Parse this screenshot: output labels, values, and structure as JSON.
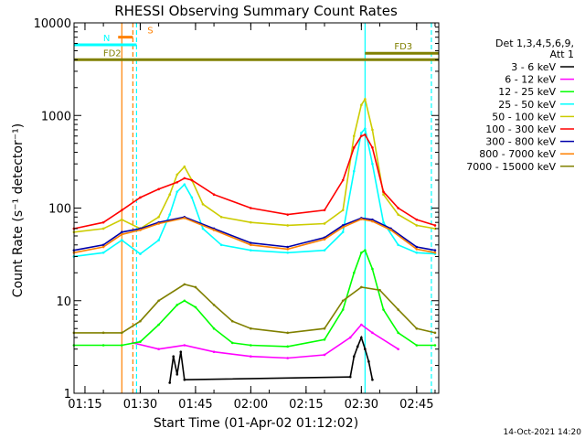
{
  "chart_data": {
    "type": "line",
    "title": "RHESSI Observing Summary Count Rates",
    "xlabel": "Start Time (01-Apr-02 01:12:02)",
    "ylabel": "Count Rate (s⁻¹ detector⁻¹)",
    "y_scale": "log",
    "ylim": [
      1,
      10000
    ],
    "xlim": [
      "01:12:02",
      "02:51:00"
    ],
    "x_ticks": [
      "01:15",
      "01:30",
      "01:45",
      "02:00",
      "02:15",
      "02:30",
      "02:45"
    ],
    "y_ticks": [
      "1",
      "10",
      "100",
      "1000",
      "10000"
    ],
    "legend_title": [
      "Det 1,3,4,5,6,9,",
      "Att 1"
    ],
    "legend_position": "right",
    "timestamp": "14-Oct-2021 14:20",
    "series": [
      {
        "name": "3 - 6 keV",
        "color": "#000000",
        "x": [
          "01:38",
          "01:39",
          "01:40",
          "01:41",
          "01:42",
          "02:27",
          "02:28",
          "02:29",
          "02:30",
          "02:31",
          "02:32",
          "02:33"
        ],
        "values": [
          1.3,
          2.5,
          1.6,
          2.8,
          1.4,
          1.5,
          2.5,
          3.2,
          4.0,
          3.0,
          2.2,
          1.4
        ]
      },
      {
        "name": "6 - 12 keV",
        "color": "#ff00ff",
        "x": [
          "01:28",
          "01:35",
          "01:42",
          "01:50",
          "02:00",
          "02:10",
          "02:20",
          "02:27",
          "02:30",
          "02:33",
          "02:40"
        ],
        "values": [
          3.5,
          3.0,
          3.3,
          2.8,
          2.5,
          2.4,
          2.6,
          4.0,
          5.5,
          4.5,
          3.0
        ]
      },
      {
        "name": "12 - 25 keV",
        "color": "#00ff00",
        "x": [
          "01:12",
          "01:20",
          "01:25",
          "01:30",
          "01:35",
          "01:40",
          "01:42",
          "01:45",
          "01:50",
          "01:55",
          "02:00",
          "02:10",
          "02:20",
          "02:25",
          "02:28",
          "02:30",
          "02:31",
          "02:33",
          "02:36",
          "02:40",
          "02:45",
          "02:50"
        ],
        "values": [
          3.3,
          3.3,
          3.3,
          3.6,
          5.5,
          9.0,
          10.0,
          8.5,
          5.0,
          3.5,
          3.3,
          3.2,
          3.8,
          8.0,
          20,
          33,
          35,
          22,
          8,
          4.5,
          3.3,
          3.3
        ]
      },
      {
        "name": "25 - 50 keV",
        "color": "#00ffff",
        "x": [
          "01:12",
          "01:20",
          "01:25",
          "01:30",
          "01:35",
          "01:38",
          "01:40",
          "01:42",
          "01:44",
          "01:47",
          "01:52",
          "02:00",
          "02:10",
          "02:20",
          "02:25",
          "02:28",
          "02:30",
          "02:31",
          "02:33",
          "02:36",
          "02:40",
          "02:45",
          "02:50"
        ],
        "values": [
          30,
          33,
          45,
          32,
          45,
          85,
          150,
          180,
          130,
          60,
          40,
          35,
          33,
          35,
          55,
          250,
          650,
          720,
          300,
          70,
          40,
          33,
          32
        ]
      },
      {
        "name": "50 - 100 keV",
        "color": "#cccc00",
        "x": [
          "01:12",
          "01:20",
          "01:25",
          "01:30",
          "01:35",
          "01:38",
          "01:40",
          "01:42",
          "01:44",
          "01:47",
          "01:52",
          "02:00",
          "02:10",
          "02:20",
          "02:25",
          "02:28",
          "02:30",
          "02:31",
          "02:33",
          "02:36",
          "02:40",
          "02:45",
          "02:50"
        ],
        "values": [
          55,
          60,
          75,
          60,
          80,
          140,
          230,
          280,
          200,
          110,
          80,
          70,
          65,
          68,
          95,
          600,
          1300,
          1500,
          700,
          140,
          85,
          65,
          60
        ]
      },
      {
        "name": "100 - 300 keV",
        "color": "#ff0000",
        "x": [
          "01:12",
          "01:20",
          "01:25",
          "01:30",
          "01:35",
          "01:40",
          "01:42",
          "01:44",
          "01:50",
          "02:00",
          "02:10",
          "02:20",
          "02:25",
          "02:28",
          "02:30",
          "02:31",
          "02:33",
          "02:36",
          "02:40",
          "02:45",
          "02:50"
        ],
        "values": [
          60,
          70,
          95,
          130,
          160,
          190,
          210,
          200,
          140,
          100,
          85,
          95,
          200,
          450,
          600,
          620,
          450,
          150,
          100,
          75,
          65
        ]
      },
      {
        "name": "300 - 800 keV",
        "color": "#0000aa",
        "x": [
          "01:12",
          "01:20",
          "01:25",
          "01:30",
          "01:35",
          "01:42",
          "01:50",
          "02:00",
          "02:10",
          "02:20",
          "02:25",
          "02:30",
          "02:33",
          "02:38",
          "02:45",
          "02:50"
        ],
        "values": [
          35,
          40,
          55,
          60,
          70,
          80,
          60,
          42,
          38,
          48,
          65,
          78,
          75,
          60,
          38,
          35
        ]
      },
      {
        "name": "800 - 7000 keV",
        "color": "#ff8000",
        "x": [
          "01:12",
          "01:20",
          "01:25",
          "01:30",
          "01:35",
          "01:42",
          "01:50",
          "02:00",
          "02:10",
          "02:20",
          "02:25",
          "02:30",
          "02:33",
          "02:38",
          "02:45",
          "02:50"
        ],
        "values": [
          33,
          38,
          52,
          58,
          68,
          78,
          58,
          40,
          36,
          46,
          62,
          76,
          72,
          58,
          36,
          33
        ]
      },
      {
        "name": "7000 - 15000 keV",
        "color": "#808000",
        "x": [
          "01:12",
          "01:20",
          "01:25",
          "01:30",
          "01:35",
          "01:42",
          "01:45",
          "01:50",
          "01:55",
          "02:00",
          "02:10",
          "02:20",
          "02:25",
          "02:30",
          "02:35",
          "02:40",
          "02:45",
          "02:50"
        ],
        "values": [
          4.5,
          4.5,
          4.5,
          6.0,
          10.0,
          15.0,
          14.0,
          9.0,
          6.0,
          5.0,
          4.5,
          5.0,
          10.0,
          14.0,
          13.0,
          8.0,
          5.0,
          4.5
        ]
      }
    ],
    "flags": [
      {
        "label": "S",
        "color": "#ff8000",
        "from": "01:24",
        "to": "01:28",
        "level": 7000
      },
      {
        "label": "N",
        "color": "#00ffff",
        "from": "01:12",
        "to": "01:29",
        "level": 5800
      },
      {
        "label": "FD2",
        "color": "#808000",
        "from": "01:12",
        "to": "02:51",
        "level": 4000
      },
      {
        "label": "FD3",
        "color": "#808000",
        "from": "02:31",
        "to": "02:51",
        "level": 4700
      }
    ],
    "markers": [
      {
        "time": "01:25",
        "color": "#ff8000",
        "style": "solid"
      },
      {
        "time": "01:28",
        "color": "#ff8000",
        "style": "dashed"
      },
      {
        "time": "01:29",
        "color": "#00ffff",
        "style": "dashed"
      },
      {
        "time": "02:31",
        "color": "#00ffff",
        "style": "solid"
      },
      {
        "time": "02:49",
        "color": "#00ffff",
        "style": "dashed"
      }
    ]
  }
}
